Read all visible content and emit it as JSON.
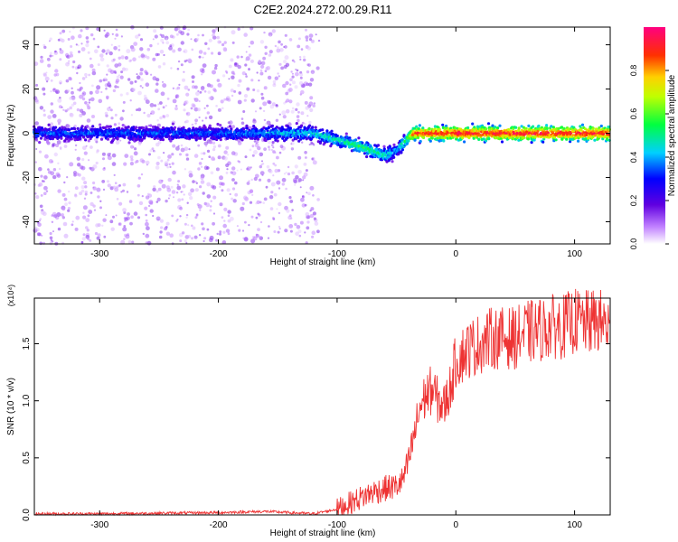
{
  "figure": {
    "title": "C2E2.2024.272.00.29.R11"
  },
  "chart_data": [
    {
      "type": "heatmap",
      "xlabel": "Height of straight line (km)",
      "ylabel": "Frequency (Hz)",
      "xlim": [
        -355,
        130
      ],
      "ylim": [
        -50,
        48
      ],
      "xticks": [
        -300,
        -200,
        -100,
        0,
        100
      ],
      "yticks": [
        -40,
        -20,
        0,
        20,
        40
      ],
      "colorbar": {
        "label": "Normalized spectral amplitude",
        "range": [
          0,
          1
        ],
        "ticks": [
          "0.0",
          "0.2",
          "0.4",
          "0.6",
          "0.8"
        ],
        "colormap": [
          "#ffffff",
          "#8a00e0",
          "#0000ff",
          "#00e0ff",
          "#00ff40",
          "#ffff00",
          "#ff8000",
          "#ff0000",
          "#ff0080"
        ]
      },
      "carrier_line": {
        "x": [
          -355,
          -300,
          -200,
          -120,
          -100,
          -80,
          -60,
          -50,
          -40,
          -35,
          0,
          130
        ],
        "frequency": [
          0,
          0,
          0,
          0,
          -3,
          -6,
          -10,
          -8,
          -2,
          0,
          0,
          0
        ],
        "peak_amplitude": [
          0.35,
          0.35,
          0.35,
          0.45,
          0.5,
          0.55,
          0.5,
          0.4,
          0.6,
          0.9,
          0.95,
          0.95
        ]
      },
      "noise_region": {
        "x_range": [
          -355,
          -115
        ],
        "amplitude_level": 0.1
      }
    },
    {
      "type": "line",
      "xlabel": "Height of straight line (km)",
      "ylabel": "SNR (10 * v/v)",
      "y_multiplier": "(x10⁴)",
      "xlim": [
        -355,
        130
      ],
      "ylim": [
        0,
        1.9
      ],
      "xticks": [
        -300,
        -200,
        -100,
        0,
        100
      ],
      "yticks": [
        "0.0",
        "0.5",
        "1.0",
        "1.5"
      ],
      "series": [
        {
          "color": "#ee3333",
          "x": [
            -355,
            -300,
            -200,
            -160,
            -120,
            -100,
            -90,
            -80,
            -70,
            -60,
            -50,
            -45,
            -40,
            -35,
            -30,
            -25,
            -20,
            -15,
            -10,
            -5,
            0,
            10,
            20,
            30,
            40,
            50,
            60,
            70,
            80,
            90,
            100,
            110,
            120,
            130
          ],
          "y": [
            0.01,
            0.01,
            0.02,
            0.03,
            0.01,
            0.05,
            0.1,
            0.15,
            0.2,
            0.23,
            0.25,
            0.3,
            0.45,
            0.7,
            0.95,
            1.05,
            1.1,
            1.0,
            0.95,
            1.1,
            1.35,
            1.45,
            1.5,
            1.55,
            1.55,
            1.55,
            1.6,
            1.62,
            1.65,
            1.65,
            1.7,
            1.68,
            1.7,
            1.65
          ]
        }
      ]
    }
  ]
}
